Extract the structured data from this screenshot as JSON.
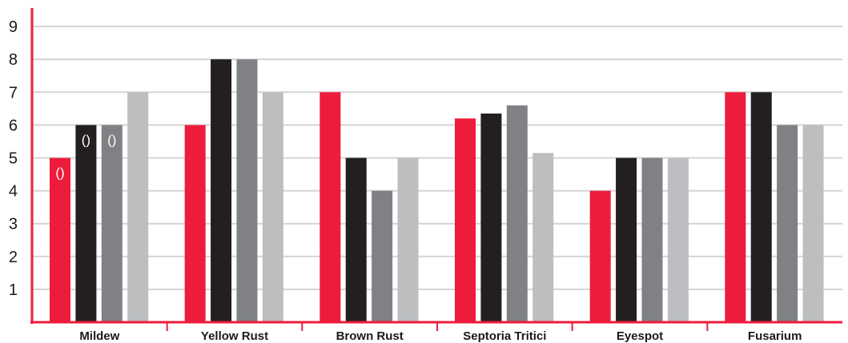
{
  "chart_data": {
    "type": "bar",
    "categories": [
      "Mildew",
      "Yellow Rust",
      "Brown Rust",
      "Septoria Tritici",
      "Eyespot",
      "Fusarium"
    ],
    "series": [
      {
        "values": [
          5,
          6,
          7,
          6.2,
          4,
          7
        ],
        "color": "#ed1c3c"
      },
      {
        "values": [
          6,
          8,
          5,
          6.35,
          5,
          7
        ],
        "color": "#231f20"
      },
      {
        "values": [
          6,
          8,
          4,
          6.6,
          5,
          6
        ],
        "color": "#808184"
      },
      {
        "values": [
          7,
          7,
          5,
          5.15,
          5,
          6
        ],
        "color": "#bcbec0"
      }
    ],
    "data_labels": [
      {
        "series": 0,
        "category": 0,
        "text": "()"
      },
      {
        "series": 1,
        "category": 0,
        "text": "()"
      },
      {
        "series": 2,
        "category": 0,
        "text": "()"
      }
    ],
    "yticks": [
      "1",
      "2",
      "3",
      "4",
      "5",
      "6",
      "7",
      "8",
      "9"
    ],
    "ylim": [
      0,
      9
    ],
    "grid": true,
    "axis_color": "#ed1c3c",
    "grid_color": "#d4d4d4"
  }
}
